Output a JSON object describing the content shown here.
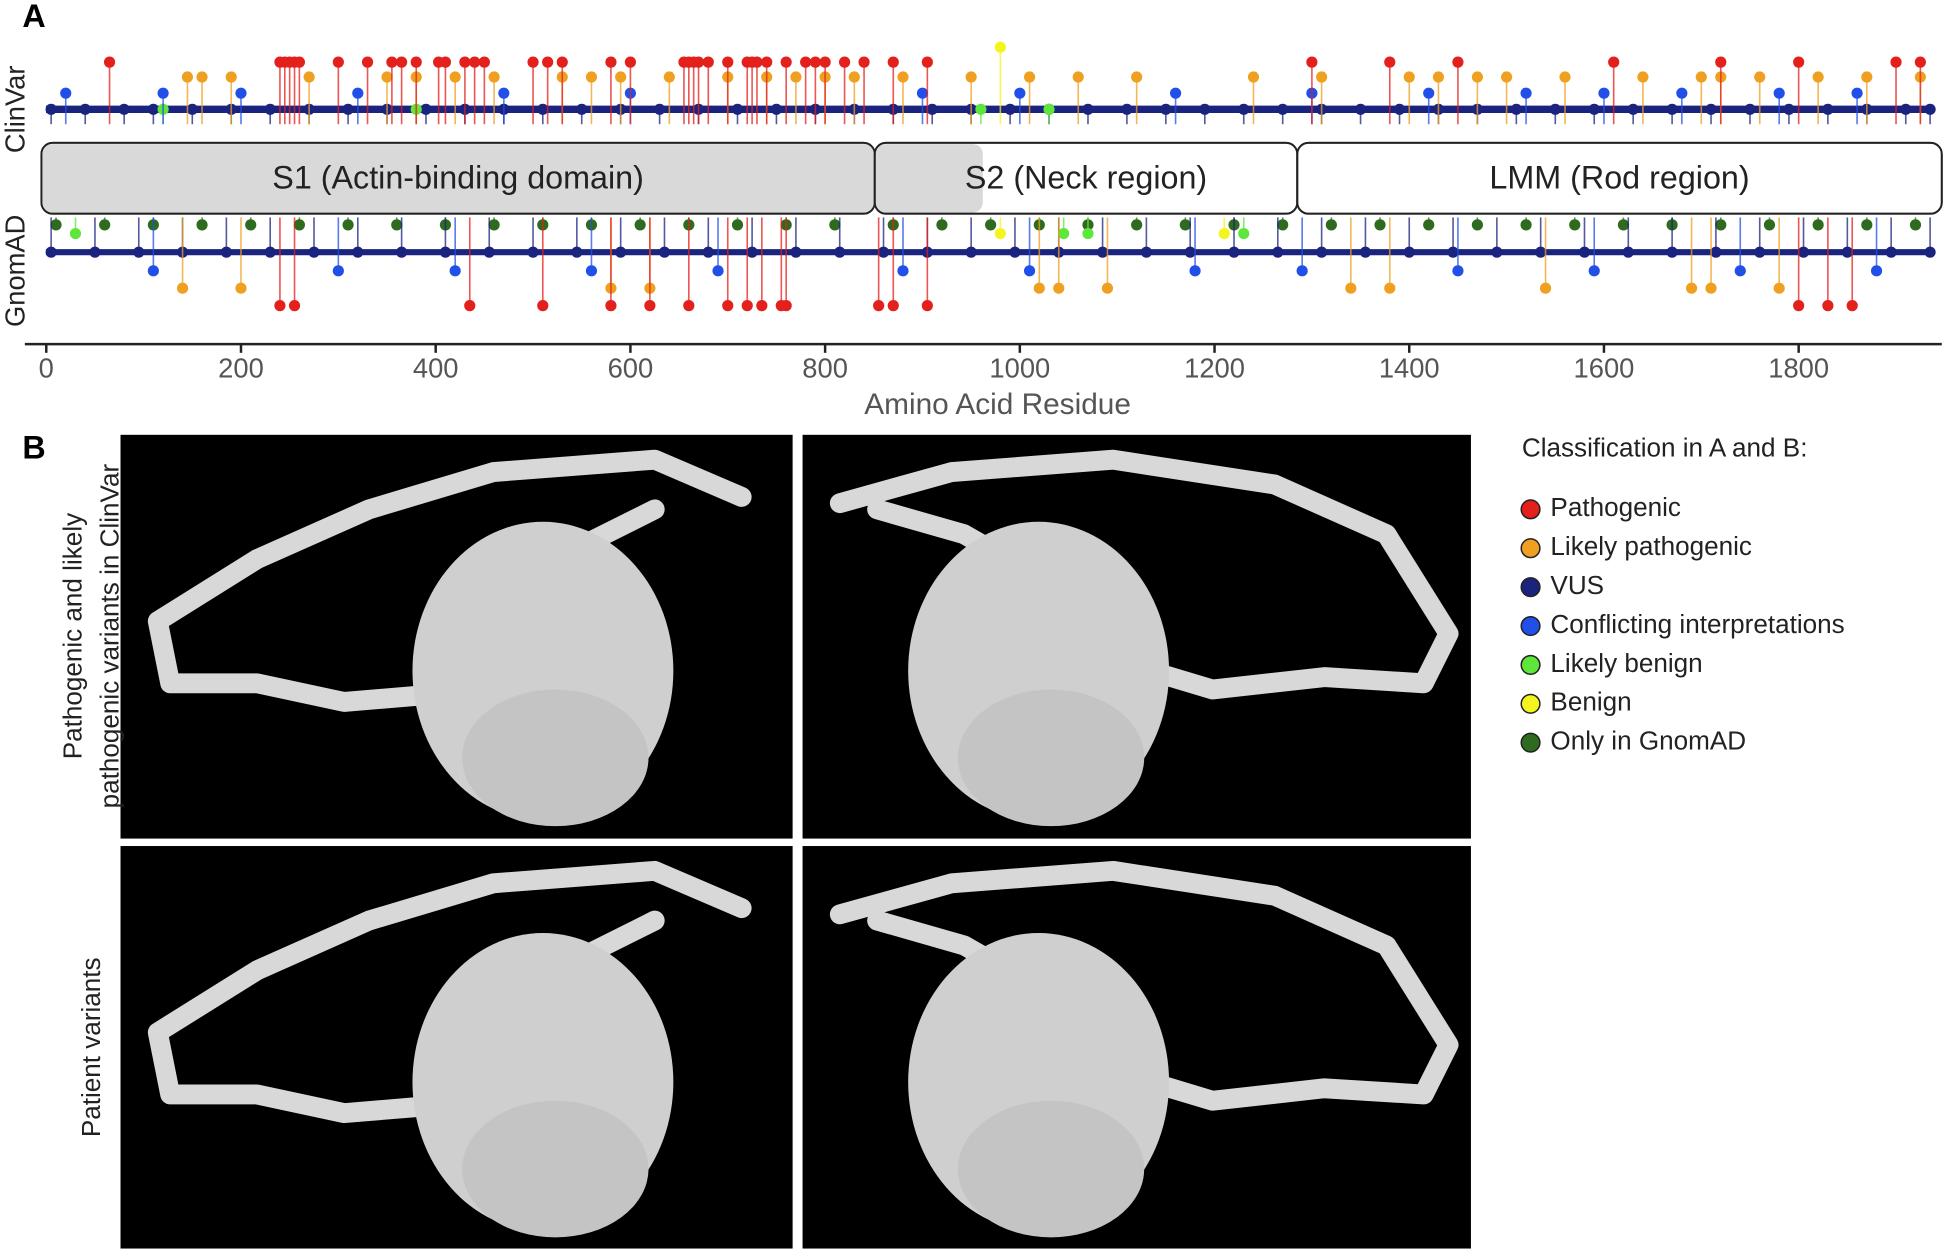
{
  "chart_data": {
    "type": "lollipop",
    "panel_label": "A",
    "xlabel": "Amino Acid Residue",
    "xlim": [
      -22,
      1947
    ],
    "xticks": [
      0,
      200,
      400,
      600,
      800,
      1000,
      1200,
      1400,
      1600,
      1800
    ],
    "tracks": [
      "ClinVar",
      "GnomAD"
    ],
    "domains": [
      {
        "label": "S1 (Actin-binding domain)",
        "start": -5,
        "end": 851,
        "shaded_end": 851
      },
      {
        "label": "S2 (Neck region)",
        "start": 851,
        "end": 1285,
        "shaded_end": 962
      },
      {
        "label": "LMM (Rod region)",
        "start": 1285,
        "end": 1947
      }
    ],
    "legend_title": "Classification in A and B:",
    "series": [
      {
        "name": "Pathogenic",
        "color": "#e3201b",
        "clinvar": [
          65,
          240,
          245,
          250,
          255,
          260,
          300,
          330,
          355,
          365,
          380,
          403,
          410,
          430,
          440,
          450,
          500,
          515,
          530,
          580,
          600,
          655,
          660,
          665,
          670,
          680,
          700,
          720,
          725,
          730,
          740,
          760,
          780,
          790,
          800,
          820,
          840,
          870,
          905,
          1300,
          1380,
          1450,
          1610,
          1720,
          1800,
          1900,
          1925
        ],
        "gnomad": [
          240,
          255,
          435,
          510,
          580,
          620,
          660,
          700,
          720,
          735,
          755,
          760,
          855,
          870,
          905,
          1800,
          1830,
          1855
        ]
      },
      {
        "name": "Likely pathogenic",
        "color": "#f0a020",
        "clinvar": [
          145,
          160,
          190,
          270,
          350,
          380,
          420,
          460,
          530,
          560,
          590,
          640,
          700,
          740,
          770,
          800,
          830,
          880,
          950,
          1010,
          1060,
          1120,
          1240,
          1310,
          1400,
          1430,
          1470,
          1500,
          1560,
          1640,
          1700,
          1720,
          1760,
          1820,
          1870,
          1925
        ],
        "gnomad": [
          140,
          200,
          580,
          620,
          1020,
          1040,
          1090,
          1340,
          1380,
          1540,
          1690,
          1710,
          1780
        ]
      },
      {
        "name": "VUS",
        "color": "#1a237e",
        "clinvar": [
          5,
          40,
          80,
          110,
          150,
          190,
          230,
          270,
          310,
          350,
          390,
          430,
          470,
          510,
          550,
          590,
          630,
          670,
          710,
          750,
          790,
          830,
          870,
          910,
          950,
          990,
          1030,
          1070,
          1110,
          1150,
          1190,
          1230,
          1270,
          1310,
          1350,
          1390,
          1430,
          1470,
          1510,
          1550,
          1590,
          1630,
          1670,
          1710,
          1750,
          1790,
          1830,
          1870,
          1910,
          1935
        ],
        "gnomad": [
          5,
          50,
          95,
          140,
          185,
          230,
          275,
          320,
          365,
          410,
          455,
          500,
          545,
          590,
          635,
          680,
          725,
          770,
          815,
          860,
          905,
          950,
          995,
          1040,
          1085,
          1130,
          1175,
          1220,
          1265,
          1310,
          1355,
          1400,
          1445,
          1490,
          1535,
          1580,
          1625,
          1670,
          1715,
          1760,
          1805,
          1850,
          1895,
          1935
        ]
      },
      {
        "name": "Conflicting interpretations",
        "color": "#2150e8",
        "clinvar": [
          20,
          120,
          200,
          320,
          470,
          600,
          900,
          1000,
          1160,
          1300,
          1420,
          1520,
          1600,
          1680,
          1780,
          1860
        ],
        "gnomad": [
          110,
          300,
          420,
          560,
          690,
          880,
          1010,
          1180,
          1290,
          1450,
          1590,
          1740,
          1880
        ]
      },
      {
        "name": "Likely benign",
        "color": "#5ee63a",
        "clinvar": [
          120,
          380,
          960,
          1030
        ],
        "gnomad": [
          30,
          1045,
          1070,
          1230
        ]
      },
      {
        "name": "Benign",
        "color": "#f4f41e",
        "clinvar": [
          980
        ],
        "gnomad": [
          980,
          1210
        ]
      },
      {
        "name": "Only in GnomAD",
        "color": "#2e6b1e",
        "clinvar": [],
        "gnomad": [
          10,
          60,
          110,
          160,
          210,
          260,
          310,
          360,
          410,
          460,
          510,
          560,
          610,
          660,
          710,
          760,
          810,
          870,
          920,
          970,
          1020,
          1070,
          1120,
          1170,
          1220,
          1270,
          1320,
          1370,
          1420,
          1470,
          1520,
          1570,
          1620,
          1670,
          1720,
          1770,
          1820,
          1870,
          1920
        ]
      }
    ]
  },
  "panel_b": {
    "label": "B",
    "row_labels": [
      [
        "Pathogenic and likely",
        "pathogenic variants in ClinVar"
      ],
      [
        "Patient variants"
      ]
    ]
  }
}
